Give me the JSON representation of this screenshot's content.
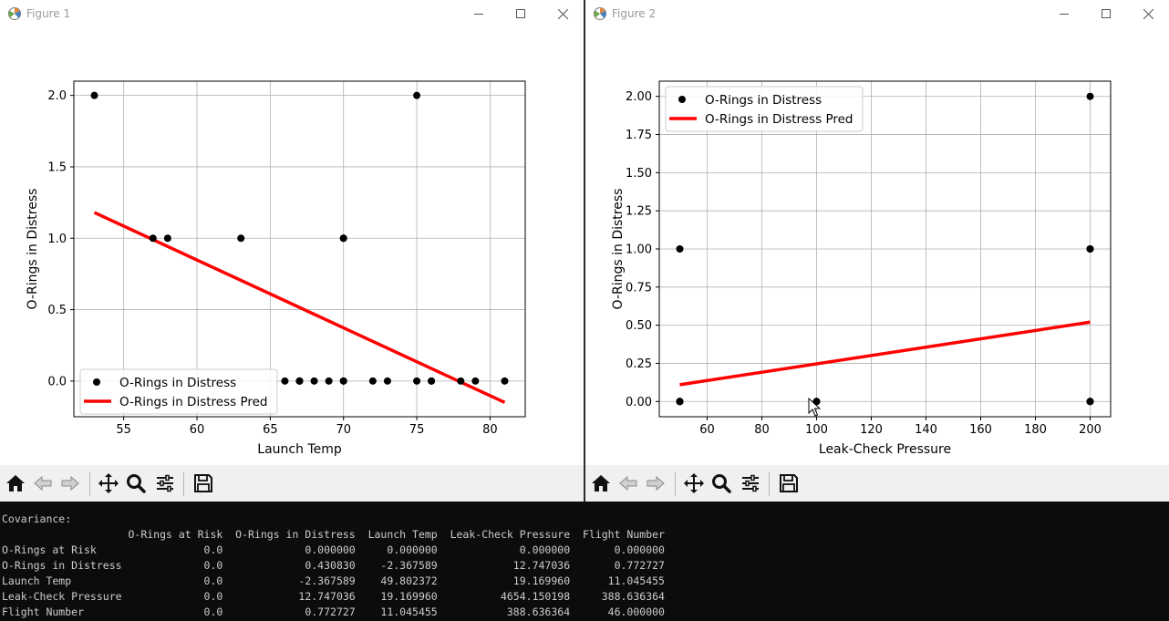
{
  "windows": [
    {
      "title": "Figure 1",
      "chart_data": {
        "type": "scatter",
        "xlabel": "Launch Temp",
        "ylabel": "O-Rings in Distress",
        "xlim": [
          51.6,
          82.4
        ],
        "ylim": [
          -0.25,
          2.1
        ],
        "xticks": [
          55,
          60,
          65,
          70,
          75,
          80
        ],
        "yticks": [
          0.0,
          0.5,
          1.0,
          1.5,
          2.0
        ],
        "ytick_labels": [
          "0.0",
          "0.5",
          "1.0",
          "1.5",
          "2.0"
        ],
        "grid": true,
        "legend_position": "lower-left",
        "series": [
          {
            "name": "O-Rings in Distress",
            "kind": "points",
            "color": "#000000",
            "x": [
              53,
              57,
              58,
              63,
              66,
              67,
              67,
              67,
              68,
              69,
              70,
              70,
              70,
              70,
              72,
              73,
              75,
              75,
              76,
              76,
              78,
              79,
              81
            ],
            "y": [
              2,
              1,
              1,
              1,
              0,
              0,
              0,
              0,
              0,
              0,
              0,
              0,
              1,
              1,
              0,
              0,
              0,
              2,
              0,
              0,
              0,
              0,
              0
            ]
          },
          {
            "name": "O-Rings in Distress Pred",
            "kind": "line",
            "color": "#ff0000",
            "x": [
              53,
              81
            ],
            "y": [
              1.18,
              -0.15
            ]
          }
        ]
      }
    },
    {
      "title": "Figure 2",
      "chart_data": {
        "type": "scatter",
        "xlabel": "Leak-Check Pressure",
        "ylabel": "O-Rings in Distress",
        "xlim": [
          42.5,
          207.5
        ],
        "ylim": [
          -0.1,
          2.1
        ],
        "xticks": [
          60,
          80,
          100,
          120,
          140,
          160,
          180,
          200
        ],
        "yticks": [
          0.0,
          0.25,
          0.5,
          0.75,
          1.0,
          1.25,
          1.5,
          1.75,
          2.0
        ],
        "ytick_labels": [
          "0.00",
          "0.25",
          "0.50",
          "0.75",
          "1.00",
          "1.25",
          "1.50",
          "1.75",
          "2.00"
        ],
        "grid": true,
        "legend_position": "upper-left",
        "series": [
          {
            "name": "O-Rings in Distress",
            "kind": "points",
            "color": "#000000",
            "x": [
              50,
              50,
              50,
              50,
              50,
              100,
              100,
              200,
              200,
              200,
              200,
              200,
              200
            ],
            "y": [
              0,
              0,
              1,
              0,
              0,
              0,
              0,
              2,
              1,
              1,
              0,
              0,
              0
            ]
          },
          {
            "name": "O-Rings in Distress Pred",
            "kind": "line",
            "color": "#ff0000",
            "x": [
              50,
              200
            ],
            "y": [
              0.11,
              0.52
            ]
          }
        ]
      }
    }
  ],
  "toolbar_icons": [
    "home-icon",
    "back-arrow-icon",
    "forward-arrow-icon",
    "pan-icon",
    "zoom-icon",
    "configure-subplots-icon",
    "save-icon"
  ],
  "console": {
    "lines": [
      "Covariance:",
      "                    O-Rings at Risk  O-Rings in Distress  Launch Temp  Leak-Check Pressure  Flight Number",
      "O-Rings at Risk                 0.0             0.000000     0.000000             0.000000       0.000000",
      "O-Rings in Distress             0.0             0.430830    -2.367589            12.747036       0.772727",
      "Launch Temp                     0.0            -2.367589    49.802372            19.169960      11.045455",
      "Leak-Check Pressure             0.0            12.747036    19.169960          4654.150198     388.636364",
      "Flight Number                   0.0             0.772727    11.045455           388.636364      46.000000"
    ]
  }
}
